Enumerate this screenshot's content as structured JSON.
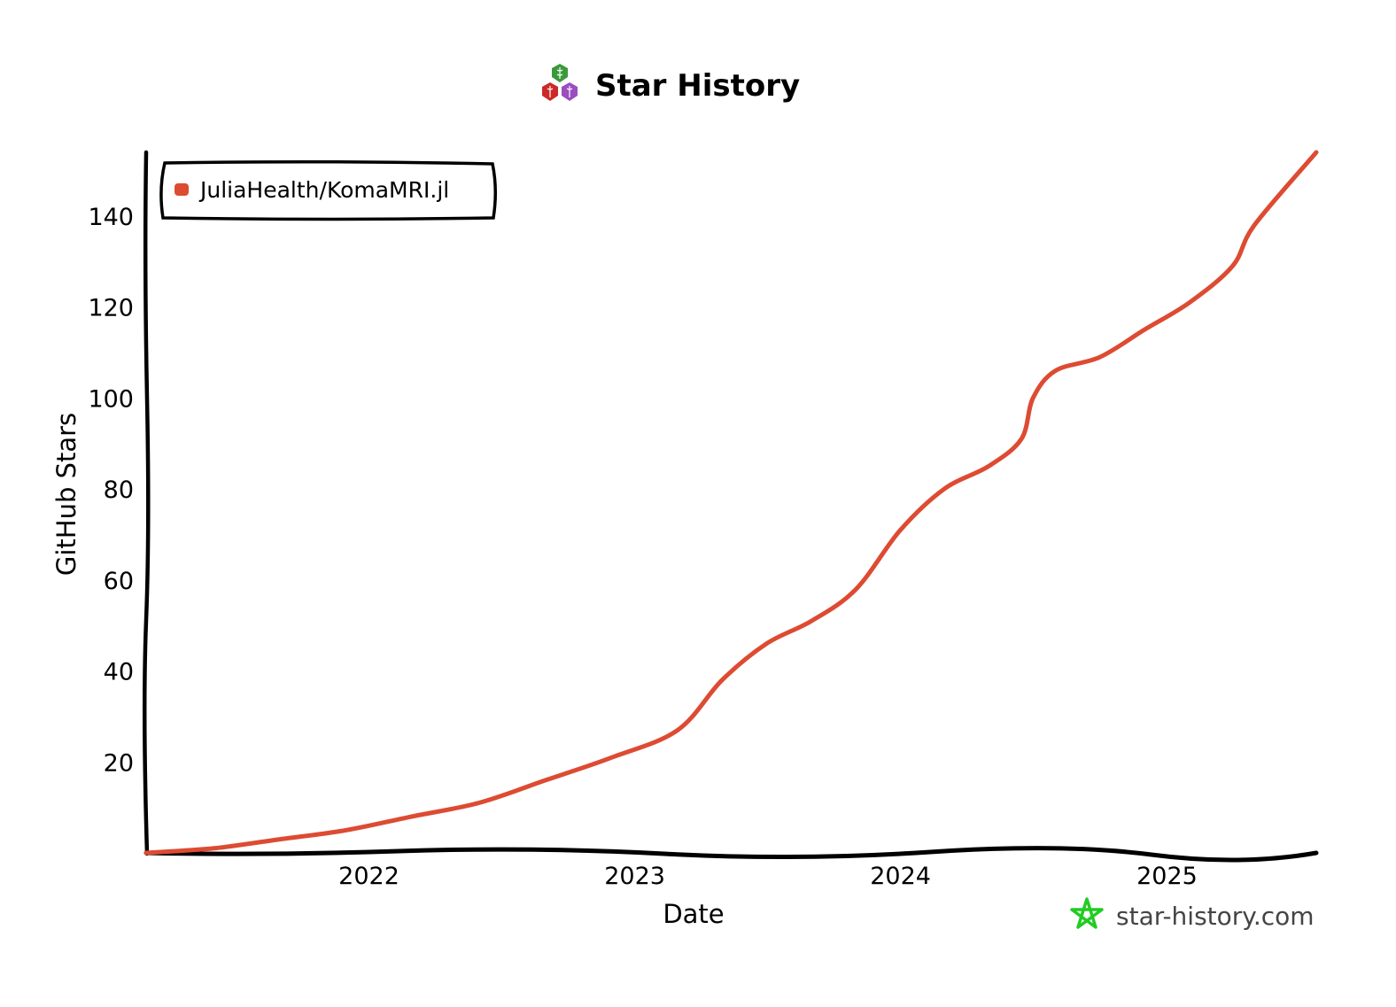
{
  "header": {
    "title": "Star History",
    "logo_icon": "julia-health-logo-icon"
  },
  "watermark": {
    "text": "star-history.com",
    "icon": "star-outline-icon",
    "icon_color": "#22cc22"
  },
  "chart_data": {
    "type": "line",
    "title": "Star History",
    "xlabel": "Date",
    "ylabel": "GitHub Stars",
    "x_type": "date",
    "xlim": [
      "2021-03-01",
      "2025-07-25"
    ],
    "ylim": [
      0,
      154
    ],
    "x_ticks": [
      "2022-01-01",
      "2023-01-01",
      "2024-01-01",
      "2025-01-01"
    ],
    "x_tick_labels": [
      "2022",
      "2023",
      "2024",
      "2025"
    ],
    "y_ticks": [
      20,
      40,
      60,
      80,
      100,
      120,
      140
    ],
    "y_tick_labels": [
      "20",
      "40",
      "60",
      "80",
      "100",
      "120",
      "140"
    ],
    "grid": false,
    "legend_position": "top-left",
    "series": [
      {
        "name": "JuliaHealth/KomaMRI.jl",
        "color": "#dd4b32",
        "x": [
          "2021-03-01",
          "2021-06-01",
          "2021-09-01",
          "2021-12-01",
          "2022-03-01",
          "2022-06-01",
          "2022-09-01",
          "2022-12-01",
          "2023-03-01",
          "2023-05-01",
          "2023-07-01",
          "2023-09-01",
          "2023-11-01",
          "2024-01-01",
          "2024-03-01",
          "2024-05-01",
          "2024-06-15",
          "2024-07-01",
          "2024-08-01",
          "2024-10-01",
          "2024-12-01",
          "2025-02-01",
          "2025-04-01",
          "2025-05-01",
          "2025-07-25"
        ],
        "y": [
          0,
          1,
          3,
          5,
          8,
          11,
          16,
          21,
          27,
          38,
          46,
          51,
          58,
          71,
          80,
          85,
          91,
          100,
          106,
          109,
          115,
          121,
          129,
          138,
          154
        ]
      }
    ]
  }
}
